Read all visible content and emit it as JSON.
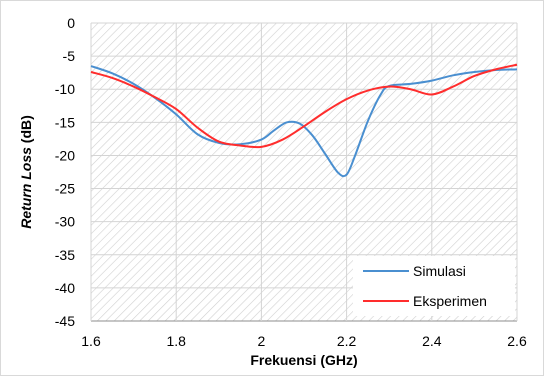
{
  "chart_data": {
    "type": "line",
    "xlabel": "Frekuensi (GHz)",
    "ylabel_italic": "Return Loss",
    "ylabel_rest": " (dB)",
    "xlim": [
      1.6,
      2.6
    ],
    "ylim": [
      -45,
      0
    ],
    "x_ticks": [
      "1.6",
      "1.8",
      "2",
      "2.2",
      "2.4",
      "2.6"
    ],
    "y_ticks": [
      "0",
      "-5",
      "-10",
      "-15",
      "-20",
      "-25",
      "-30",
      "-35",
      "-40",
      "-45"
    ],
    "x_tick_values": [
      1.6,
      1.8,
      2.0,
      2.2,
      2.4,
      2.6
    ],
    "y_tick_values": [
      0,
      -5,
      -10,
      -15,
      -20,
      -25,
      -30,
      -35,
      -40,
      -45
    ],
    "grid": true,
    "legend_position": "bottom-right",
    "background_pattern": "diagonal-hatch",
    "series": [
      {
        "name": "Simulasi",
        "color": "#4a8fd0",
        "x": [
          1.6,
          1.65,
          1.7,
          1.75,
          1.8,
          1.85,
          1.9,
          1.95,
          2.0,
          2.03,
          2.06,
          2.09,
          2.12,
          2.15,
          2.18,
          2.2,
          2.22,
          2.25,
          2.28,
          2.3,
          2.35,
          2.4,
          2.45,
          2.5,
          2.55,
          2.6
        ],
        "y": [
          -6.5,
          -7.6,
          -9.2,
          -11.3,
          -13.8,
          -16.8,
          -18.1,
          -18.3,
          -17.6,
          -16.2,
          -15.0,
          -15.2,
          -17.0,
          -19.8,
          -22.6,
          -22.9,
          -20.0,
          -14.8,
          -10.8,
          -9.5,
          -9.2,
          -8.7,
          -7.9,
          -7.4,
          -7.1,
          -7.0
        ]
      },
      {
        "name": "Eksperimen",
        "color": "#ff2d2d",
        "x": [
          1.6,
          1.65,
          1.7,
          1.75,
          1.8,
          1.85,
          1.9,
          1.95,
          2.0,
          2.05,
          2.1,
          2.15,
          2.2,
          2.25,
          2.3,
          2.35,
          2.4,
          2.45,
          2.5,
          2.55,
          2.6
        ],
        "y": [
          -7.4,
          -8.3,
          -9.6,
          -11.2,
          -13.0,
          -15.8,
          -17.9,
          -18.5,
          -18.7,
          -17.6,
          -15.6,
          -13.4,
          -11.5,
          -10.2,
          -9.6,
          -10.0,
          -10.8,
          -9.6,
          -8.0,
          -7.0,
          -6.3
        ]
      }
    ]
  }
}
